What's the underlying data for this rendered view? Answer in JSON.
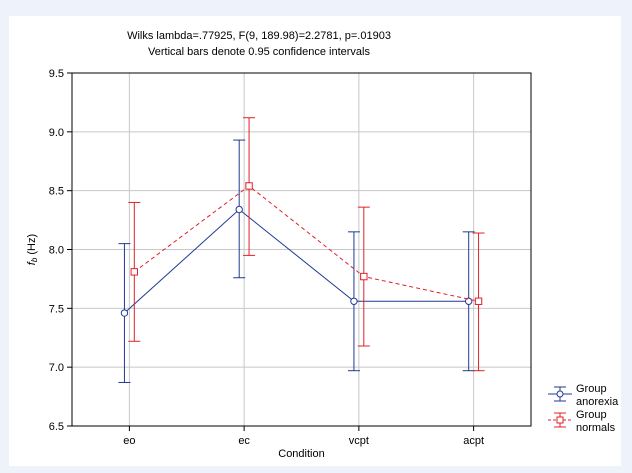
{
  "chart_data": {
    "type": "line",
    "title": "Wilks lambda=.77925, F(9, 189.98)=2.2781, p=.01903",
    "subtitle": "Vertical bars denote 0.95 confidence intervals",
    "xlabel": "Condition",
    "ylabel": "Hz",
    "ylabel_symbol": "f",
    "ylabel_subscript": "b",
    "categories": [
      "eo",
      "ec",
      "vcpt",
      "acpt"
    ],
    "ylim": [
      6.5,
      9.5
    ],
    "yticks": [
      "6.5",
      "7.0",
      "7.5",
      "8.0",
      "8.5",
      "9.0",
      "9.5"
    ],
    "grid": true,
    "legend_position": "bottom-right",
    "series": [
      {
        "name": "Group anorexia",
        "name_line1": "Group",
        "name_line2": "anorexia",
        "color": "#1f3a93",
        "marker": "circle",
        "line_style": "solid",
        "values": [
          7.46,
          8.34,
          7.56,
          7.56
        ],
        "ci_low": [
          6.87,
          7.76,
          6.97,
          6.97
        ],
        "ci_high": [
          8.05,
          8.93,
          8.15,
          8.15
        ]
      },
      {
        "name": "Group normals",
        "name_line1": "Group",
        "name_line2": "normals",
        "color": "#e0202a",
        "marker": "square",
        "line_style": "dashed",
        "values": [
          7.81,
          8.54,
          7.77,
          7.56
        ],
        "ci_low": [
          7.22,
          7.95,
          7.18,
          6.97
        ],
        "ci_high": [
          8.4,
          9.12,
          8.36,
          8.14
        ]
      }
    ]
  }
}
